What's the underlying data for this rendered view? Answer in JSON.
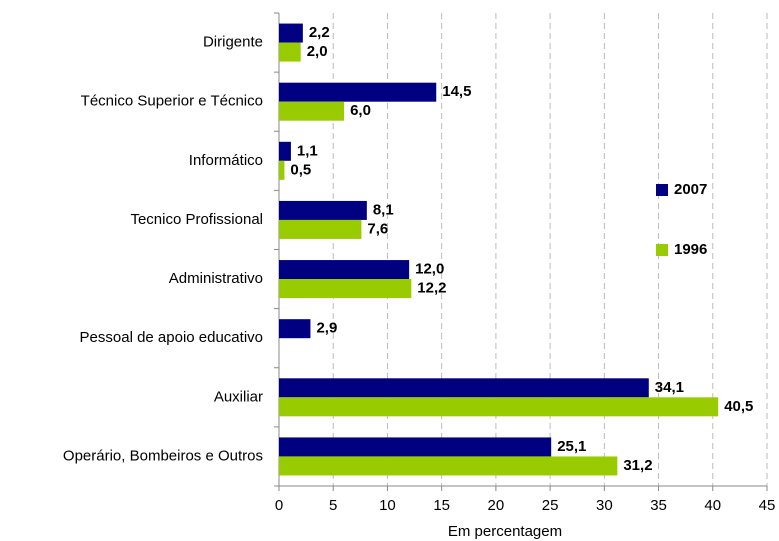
{
  "chart_data": {
    "type": "bar",
    "orientation": "horizontal",
    "xlabel": "Em percentagem",
    "categories": [
      "Dirigente",
      "Técnico Superior e Técnico",
      "Informático",
      "Tecnico Profissional",
      "Administrativo",
      "Pessoal de apoio educativo",
      "Auxiliar",
      "Operário, Bombeiros e Outros"
    ],
    "series": [
      {
        "name": "2007",
        "color": "#000080",
        "label_color": "#333399",
        "values": [
          2.2,
          14.5,
          1.1,
          8.1,
          12.0,
          2.9,
          34.1,
          25.1
        ],
        "value_labels": [
          "2,2",
          "14,5",
          "1,1",
          "8,1",
          "12,0",
          "2,9",
          "34,1",
          "25,1"
        ]
      },
      {
        "name": "1996",
        "color": "#99cc00",
        "label_color": "#339900",
        "values": [
          2.0,
          6.0,
          0.5,
          7.6,
          12.2,
          null,
          40.5,
          31.2
        ],
        "value_labels": [
          "2,0",
          "6,0",
          "0,5",
          "7,6",
          "12,2",
          null,
          "40,5",
          "31,2"
        ]
      }
    ],
    "xlim": [
      0,
      45
    ],
    "xticks": [
      0,
      5,
      10,
      15,
      20,
      25,
      30,
      35,
      40,
      45
    ],
    "grid": true
  }
}
